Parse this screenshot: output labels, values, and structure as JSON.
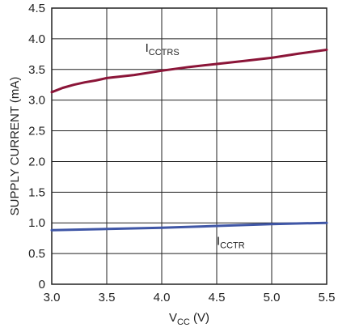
{
  "chart_data": {
    "type": "line",
    "title": "",
    "xlabel": {
      "main": "V",
      "sub": "CC",
      "tail": " (V)"
    },
    "ylabel": "SUPPLY CURRENT (mA)",
    "xlim": [
      3.0,
      5.5
    ],
    "ylim": [
      0,
      4.5
    ],
    "x_ticks": [
      "3.0",
      "3.5",
      "4.0",
      "4.5",
      "5.0",
      "5.5"
    ],
    "y_ticks": [
      "0",
      "0.5",
      "1.0",
      "1.5",
      "2.0",
      "2.5",
      "3.0",
      "3.5",
      "4.0",
      "4.5"
    ],
    "grid": true,
    "series": [
      {
        "name": {
          "main": "I",
          "sub": "CCTRS"
        },
        "color": "#8b1538",
        "x": [
          3.0,
          3.1,
          3.2,
          3.3,
          3.4,
          3.5,
          3.75,
          4.0,
          4.25,
          4.5,
          4.75,
          5.0,
          5.25,
          5.5
        ],
        "y": [
          3.13,
          3.2,
          3.25,
          3.29,
          3.32,
          3.36,
          3.41,
          3.48,
          3.54,
          3.59,
          3.64,
          3.69,
          3.76,
          3.82
        ]
      },
      {
        "name": {
          "main": "I",
          "sub": "CCTR"
        },
        "color": "#3f56a6",
        "x": [
          3.0,
          3.5,
          4.0,
          4.5,
          5.0,
          5.5
        ],
        "y": [
          0.88,
          0.9,
          0.92,
          0.95,
          0.98,
          1.0
        ]
      }
    ]
  }
}
